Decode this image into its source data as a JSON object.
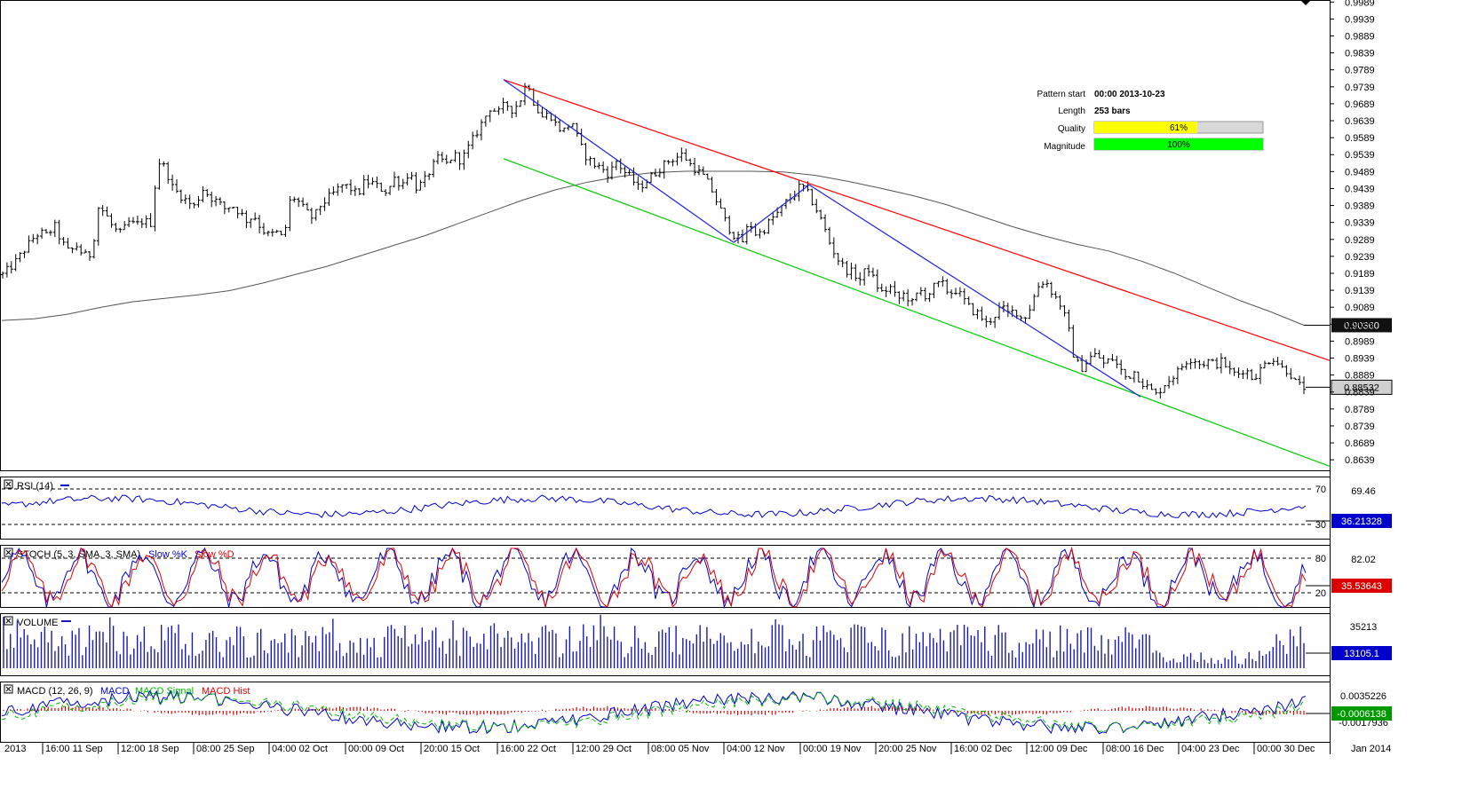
{
  "chart_data": [
    {
      "type": "ohlc",
      "title": "",
      "y_ticks": [
        "0.9989",
        "0.9939",
        "0.9889",
        "0.9839",
        "0.9789",
        "0.9739",
        "0.9689",
        "0.9639",
        "0.9589",
        "0.9539",
        "0.9489",
        "0.9439",
        "0.9389",
        "0.9339",
        "0.9289",
        "0.9239",
        "0.9189",
        "0.9139",
        "0.9089",
        "0.9039",
        "0.8989",
        "0.8939",
        "0.8889",
        "0.8839",
        "0.8789",
        "0.8739",
        "0.8689",
        "0.8639"
      ],
      "ylim": [
        0.8608,
        0.9995
      ],
      "ma_label": "0.90360",
      "last_price_label": "0.88532",
      "close_series": [
        0.9185,
        0.9205,
        0.923,
        0.926,
        0.929,
        0.931,
        0.93,
        0.933,
        0.928,
        0.925,
        0.927,
        0.924,
        0.9245,
        0.939,
        0.936,
        0.932,
        0.9305,
        0.934,
        0.933,
        0.9345,
        0.9335,
        0.952,
        0.95,
        0.944,
        0.942,
        0.94,
        0.9385,
        0.944,
        0.9415,
        0.94,
        0.938,
        0.939,
        0.937,
        0.9345,
        0.936,
        0.932,
        0.93,
        0.931,
        0.929,
        0.942,
        0.94,
        0.937,
        0.935,
        0.939,
        0.941,
        0.943,
        0.945,
        0.944,
        0.942,
        0.946,
        0.9455,
        0.944,
        0.943,
        0.947,
        0.945,
        0.949,
        0.944,
        0.946,
        0.95,
        0.953,
        0.951,
        0.954,
        0.952,
        0.956,
        0.96,
        0.964,
        0.968,
        0.966,
        0.969,
        0.967,
        0.97,
        0.976,
        0.968,
        0.965,
        0.966,
        0.962,
        0.961,
        0.964,
        0.957,
        0.953,
        0.951,
        0.95,
        0.948,
        0.952,
        0.949,
        0.947,
        0.944,
        0.946,
        0.948,
        0.95,
        0.952,
        0.953,
        0.954,
        0.951,
        0.949,
        0.947,
        0.943,
        0.938,
        0.933,
        0.93,
        0.928,
        0.934,
        0.93,
        0.932,
        0.935,
        0.937,
        0.94,
        0.942,
        0.945,
        0.942,
        0.938,
        0.933,
        0.927,
        0.923,
        0.92,
        0.919,
        0.917,
        0.921,
        0.916,
        0.913,
        0.915,
        0.911,
        0.913,
        0.91,
        0.914,
        0.912,
        0.915,
        0.916,
        0.913,
        0.914,
        0.911,
        0.908,
        0.907,
        0.904,
        0.906,
        0.909,
        0.907,
        0.908,
        0.905,
        0.909,
        0.915,
        0.917,
        0.913,
        0.91,
        0.904,
        0.893,
        0.891,
        0.894,
        0.895,
        0.892,
        0.894,
        0.891,
        0.888,
        0.89,
        0.887,
        0.885,
        0.883,
        0.886,
        0.888,
        0.89,
        0.893,
        0.894,
        0.892,
        0.893,
        0.892,
        0.893,
        0.89,
        0.889,
        0.891,
        0.888,
        0.89,
        0.893,
        0.894,
        0.891,
        0.89,
        0.886,
        0.8853
      ],
      "ma_series": [
        0.905,
        0.9055,
        0.9068,
        0.9088,
        0.9105,
        0.9115,
        0.9125,
        0.9138,
        0.916,
        0.9185,
        0.921,
        0.924,
        0.927,
        0.93,
        0.9335,
        0.937,
        0.9405,
        0.9435,
        0.9458,
        0.9475,
        0.9486,
        0.949,
        0.949,
        0.949,
        0.9488,
        0.9478,
        0.946,
        0.944,
        0.9418,
        0.9392,
        0.936,
        0.9328,
        0.93,
        0.9275,
        0.9255,
        0.9225,
        0.919,
        0.915,
        0.911,
        0.9075,
        0.9036
      ],
      "x_tick_labels": [
        "2013",
        "16:00 11 Sep",
        "12:00 18 Sep",
        "08:00 25 Sep",
        "04:00 02 Oct",
        "00:00 09 Oct",
        "20:00 15 Oct",
        "16:00 22 Oct",
        "12:00 29 Oct",
        "08:00 05 Nov",
        "04:00 12 Nov",
        "00:00 19 Nov",
        "20:00 25 Nov",
        "16:00 02 Dec",
        "12:00 09 Dec",
        "08:00 16 Dec",
        "04:00 23 Dec",
        "00:00 30 Dec",
        "Jan 2014"
      ],
      "pattern_lines": [
        {
          "color": "#ff0000",
          "from": [
            0.976,
            0
          ],
          "to": [
            0.8932,
            1
          ]
        },
        {
          "color": "#00cc00",
          "from": [
            0.9527,
            0
          ],
          "to": [
            0.862,
            1
          ]
        },
        {
          "color": "#2222dd",
          "segments": [
            [
              0.976,
              0.928
            ],
            [
              0.928,
              0.945
            ],
            [
              0.945,
              0.8825
            ]
          ]
        }
      ]
    },
    {
      "type": "line",
      "indicator": "RSI (14)",
      "levels": [
        "70",
        "30"
      ],
      "side_value": "69.46",
      "current": "36.21328",
      "colors": [
        "#0000cc"
      ]
    },
    {
      "type": "line",
      "indicator": "STOCH (5, 3, SMA, 3, SMA)",
      "series": [
        {
          "name": "Slow %K",
          "color": "#0000cc"
        },
        {
          "name": "Slow %D",
          "color": "#dd0000"
        }
      ],
      "levels": [
        "80",
        "20"
      ],
      "side_value": "82.02",
      "current": "35.53643"
    },
    {
      "type": "bar",
      "indicator": "VOLUME",
      "side_value": "35213",
      "current": "13105.1",
      "colors": [
        "#1a1ab4"
      ]
    },
    {
      "type": "line",
      "indicator": "MACD (12, 26, 9)",
      "series": [
        {
          "name": "MACD",
          "color": "#0000cc"
        },
        {
          "name": "MACD Signal",
          "color": "#00bb00"
        },
        {
          "name": "MACD Hist",
          "color": "#dd0000"
        }
      ],
      "side_value": "0.0035226",
      "side_value_2": "-0.0017936",
      "current": "-0.0006138"
    }
  ],
  "info_box": {
    "pattern_start_label": "Pattern start",
    "pattern_start_value": "00:00 2013-10-23",
    "length_label": "Length",
    "length_value": "253 bars",
    "quality_label": "Quality",
    "quality_value": "61%",
    "quality_fraction": 0.61,
    "magnitude_label": "Magnitude",
    "magnitude_value": "100%",
    "magnitude_fraction": 1.0
  },
  "colors": {
    "axis_bg": "#ffffff",
    "price_bar": "#000000",
    "ma_line": "#555555",
    "quality_fill": "#ffff00",
    "magnitude_fill": "#00ff00",
    "rsi_line": "#0000cc",
    "volume_bar": "#1a1ab4",
    "current_marker_bg": "#0000cc",
    "ma_marker_bg": "#111111",
    "macd_neg_marker_bg": "#009900"
  }
}
